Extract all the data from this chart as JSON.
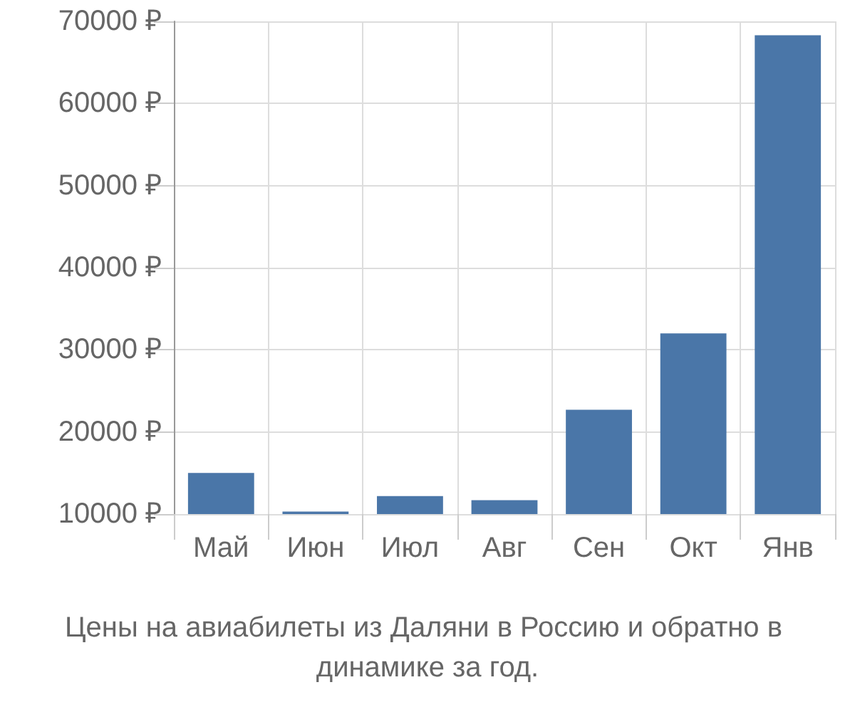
{
  "chart_data": {
    "type": "bar",
    "title": "Цены на авиабилеты из Даляни в Россию и обратно в динамике за год.",
    "categories": [
      "Май",
      "Июн",
      "Июл",
      "Авг",
      "Сен",
      "Окт",
      "Янв"
    ],
    "values": [
      15000,
      10300,
      12200,
      11700,
      22700,
      32000,
      68300
    ],
    "color": "#4a76a8",
    "ylim": [
      10000,
      70000
    ],
    "yticks": [
      {
        "value": 10000,
        "label": "10000 ₽"
      },
      {
        "value": 20000,
        "label": "20000 ₽"
      },
      {
        "value": 30000,
        "label": "30000 ₽"
      },
      {
        "value": 40000,
        "label": "40000 ₽"
      },
      {
        "value": 50000,
        "label": "50000 ₽"
      },
      {
        "value": 60000,
        "label": "60000 ₽"
      },
      {
        "value": 70000,
        "label": "70000 ₽"
      }
    ],
    "grid": true
  }
}
